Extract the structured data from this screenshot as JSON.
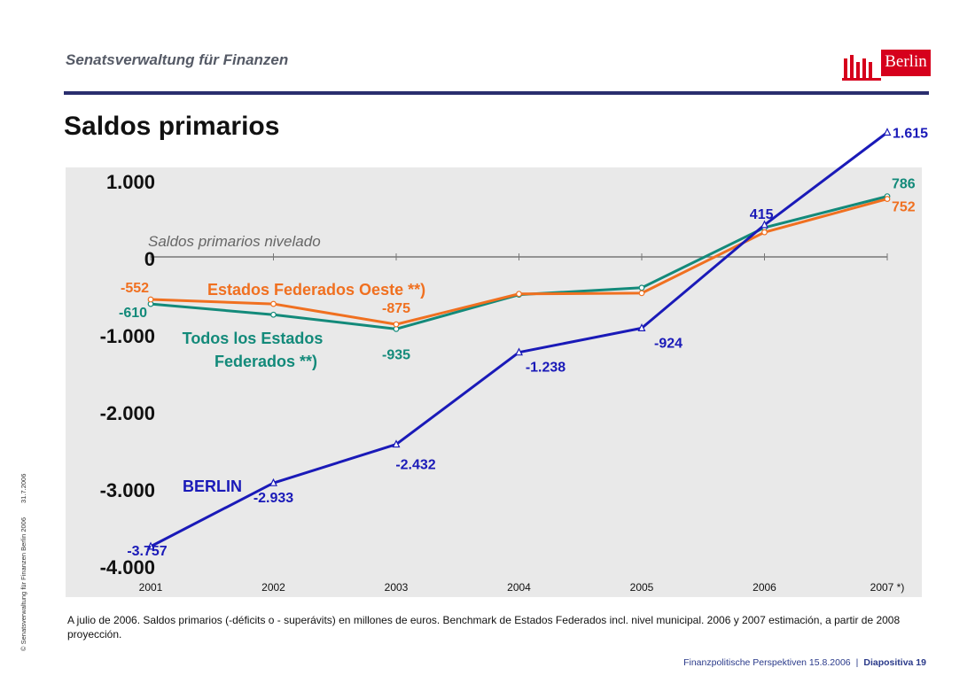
{
  "header": {
    "org": "Senatsverwaltung für Finanzen",
    "title": "Saldos primarios",
    "logo_text": "Berlin"
  },
  "note": "A julio de 2006. Saldos primarios (-déficits o - superávits) en millones de euros. Benchmark de Estados Federados incl. nivel municipal. 2006 y 2007 estimación, a partir de 2008 proyección.",
  "side": {
    "copyright": "© Senatsverwaltung für Finanzen Berlin 2006",
    "date": "31.7.2006"
  },
  "footer": {
    "left": "Finanzpolitische Perspektiven 15.8.2006",
    "separator": "|",
    "right": "Diapositiva 19"
  },
  "colors": {
    "berlin": "#1a1ab8",
    "oeste": "#f07020",
    "todos": "#138a7a",
    "axis": "#777777",
    "logo": "#d6001c"
  },
  "chart_data": {
    "type": "line",
    "x": [
      "2001",
      "2002",
      "2003",
      "2004",
      "2005",
      "2006",
      "2007 *)"
    ],
    "ylim": [
      -4000,
      1000
    ],
    "yticks": [
      1000,
      0,
      -1000,
      -2000,
      -3000,
      -4000
    ],
    "ytick_labels": [
      "1.000",
      "0",
      "-1.000",
      "-2.000",
      "-3.000",
      "-4.000"
    ],
    "baseline_label": "Saldos primarios nivelado",
    "series": [
      {
        "name": "BERLIN",
        "color": "#1a1ab8",
        "marker": "triangle",
        "values": [
          -3757,
          -2933,
          -2432,
          -1238,
          -924,
          415,
          1615
        ],
        "labels": [
          "-3.757",
          "-2.933",
          "-2.432",
          "-1.238",
          "-924",
          "415",
          "1.615"
        ]
      },
      {
        "name": "Estados Federados Oeste **)",
        "color": "#f07020",
        "marker": "circle",
        "values": [
          -552,
          -610,
          -875,
          -480,
          -470,
          320,
          752
        ],
        "labels": [
          "-552",
          null,
          "-875",
          null,
          null,
          null,
          "752"
        ]
      },
      {
        "name": "Todos los Estados Federados **)",
        "name_lines": [
          "Todos los Estados",
          "Federados **)"
        ],
        "color": "#138a7a",
        "marker": "circle",
        "values": [
          -610,
          -750,
          -935,
          -490,
          -400,
          380,
          786
        ],
        "labels": [
          "-610",
          null,
          "-935",
          null,
          null,
          null,
          "786"
        ]
      }
    ]
  }
}
